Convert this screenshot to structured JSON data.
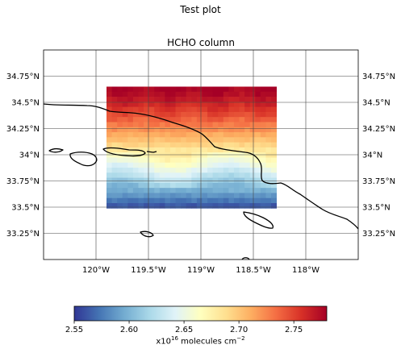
{
  "figure": {
    "suptitle": "Test plot",
    "axes_title": "HCHO column"
  },
  "map": {
    "extent": {
      "lon": [
        -120.5,
        -117.5
      ],
      "lat": [
        33.0,
        35.0
      ]
    },
    "gridlines": true,
    "lon_ticks": [
      {
        "value": -120.0,
        "label": "120°W"
      },
      {
        "value": -119.5,
        "label": "119.5°W"
      },
      {
        "value": -119.0,
        "label": "119°W"
      },
      {
        "value": -118.5,
        "label": "118.5°W"
      },
      {
        "value": -118.0,
        "label": "118°W"
      }
    ],
    "lat_ticks": [
      {
        "value": 34.75,
        "label": "34.75°N"
      },
      {
        "value": 34.5,
        "label": "34.5°N"
      },
      {
        "value": 34.25,
        "label": "34.25°N"
      },
      {
        "value": 34.0,
        "label": "34°N"
      },
      {
        "value": 33.75,
        "label": "33.75°N"
      },
      {
        "value": 33.5,
        "label": "33.5°N"
      },
      {
        "value": 33.25,
        "label": "33.25°N"
      }
    ],
    "data_box": {
      "lon": [
        -119.9,
        -118.28
      ],
      "lat": [
        33.49,
        34.65
      ]
    },
    "grid_size": {
      "cols": 32,
      "rows": 24
    },
    "coastline_color": "#000000"
  },
  "colorbar": {
    "colormap": "RdYlBu_r",
    "vmin": 2.55,
    "vmax": 2.78,
    "ticks": [
      {
        "value": 2.55,
        "label": "2.55"
      },
      {
        "value": 2.6,
        "label": "2.60"
      },
      {
        "value": 2.65,
        "label": "2.65"
      },
      {
        "value": 2.7,
        "label": "2.70"
      },
      {
        "value": 2.75,
        "label": "2.75"
      }
    ],
    "label_prefix": "x10",
    "label_exp": "16",
    "label_mid": " molecules cm",
    "label_exp2": "−2",
    "stops": [
      "#313695",
      "#4575b4",
      "#74add1",
      "#abd9e9",
      "#e0f3f8",
      "#ffffbf",
      "#fee090",
      "#fdae61",
      "#f46d43",
      "#d73027",
      "#a50026"
    ]
  }
}
